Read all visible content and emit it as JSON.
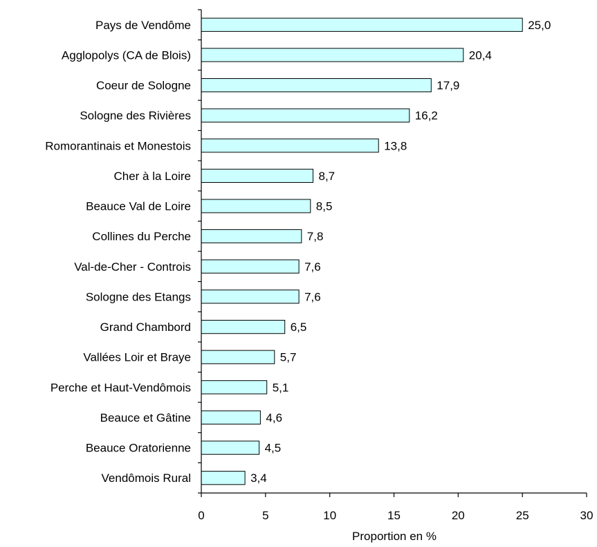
{
  "chart_data": {
    "type": "bar",
    "orientation": "horizontal",
    "categories": [
      "Pays de Vendôme",
      "Agglopolys (CA de Blois)",
      "Coeur de Sologne",
      "Sologne des Rivières",
      "Romorantinais et Monestois",
      "Cher à la Loire",
      "Beauce Val de Loire",
      "Collines du Perche",
      "Val-de-Cher - Controis",
      "Sologne des Etangs",
      "Grand Chambord",
      "Vallées Loir et Braye",
      "Perche et Haut-Vendômois",
      "Beauce et Gâtine",
      "Beauce Oratorienne",
      "Vendômois Rural"
    ],
    "values": [
      25.0,
      20.4,
      17.9,
      16.2,
      13.8,
      8.7,
      8.5,
      7.8,
      7.6,
      7.6,
      6.5,
      5.7,
      5.1,
      4.6,
      4.5,
      3.4
    ],
    "data_labels": [
      "25,0",
      "20,4",
      "17,9",
      "16,2",
      "13,8",
      "8,7",
      "8,5",
      "7,8",
      "7,6",
      "7,6",
      "6,5",
      "5,7",
      "5,1",
      "4,6",
      "4,5",
      "3,4"
    ],
    "xlabel": "Proportion en %",
    "ylabel": "",
    "xlim": [
      0,
      30
    ],
    "xticks": [
      0,
      5,
      10,
      15,
      20,
      25,
      30
    ],
    "xtick_labels": [
      "0",
      "5",
      "10",
      "15",
      "20",
      "25",
      "30"
    ],
    "bar_color": "#ccffff",
    "bar_edge_color": "#000000",
    "grid": false,
    "legend": "none"
  }
}
